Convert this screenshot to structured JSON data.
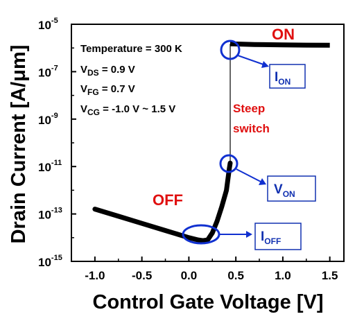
{
  "chart_data": {
    "type": "line",
    "xlabel": "Control Gate Voltage [V]",
    "ylabel": "Drain Current [A/μm]",
    "xlim": [
      -1.25,
      1.65
    ],
    "ylim_log10": [
      -15,
      -5
    ],
    "y_scale": "log",
    "x_ticks": [
      {
        "v": -1.0,
        "label": "-1.0"
      },
      {
        "v": -0.5,
        "label": "-0.5"
      },
      {
        "v": 0.0,
        "label": "0.0"
      },
      {
        "v": 0.5,
        "label": "0.5"
      },
      {
        "v": 1.0,
        "label": "1.0"
      },
      {
        "v": 1.5,
        "label": "1.5"
      }
    ],
    "y_ticks": [
      {
        "exp": -5,
        "base": "10",
        "sup": "-5"
      },
      {
        "exp": -7,
        "base": "10",
        "sup": "-7"
      },
      {
        "exp": -9,
        "base": "10",
        "sup": "-9"
      },
      {
        "exp": -11,
        "base": "10",
        "sup": "-11"
      },
      {
        "exp": -13,
        "base": "10",
        "sup": "-13"
      },
      {
        "exp": -15,
        "base": "10",
        "sup": "-15"
      }
    ],
    "series": [
      {
        "color": "#000000",
        "points": [
          [
            -1.0,
            1.6e-13
          ],
          [
            -0.75,
            8e-14
          ],
          [
            -0.5,
            4e-14
          ],
          [
            -0.25,
            2e-14
          ],
          [
            0.0,
            1e-14
          ],
          [
            0.1,
            8e-15
          ],
          [
            0.15,
            7.5e-15
          ],
          [
            0.2,
            8e-15
          ],
          [
            0.25,
            1.6e-14
          ],
          [
            0.3,
            5e-14
          ],
          [
            0.35,
            2e-13
          ],
          [
            0.4,
            1e-12
          ],
          [
            0.43,
            8e-12
          ],
          [
            0.44,
            1.4e-11
          ],
          [
            0.44,
            1.5e-06
          ],
          [
            0.46,
            1.5e-06
          ],
          [
            0.7,
            1.4e-06
          ],
          [
            1.0,
            1.35e-06
          ],
          [
            1.25,
            1.32e-06
          ],
          [
            1.5,
            1.3e-06
          ]
        ]
      }
    ],
    "conditions": {
      "temperature": "Temperature = 300 K",
      "vds": {
        "main": "V",
        "sub": "DS",
        "rest": " = 0.9 V"
      },
      "vfg": {
        "main": "V",
        "sub": "FG",
        "rest": " = 0.7 V"
      },
      "vcg": {
        "main": "V",
        "sub": "CG",
        "rest": " = -1.0 V ~ 1.5 V"
      }
    },
    "annotations": {
      "on": "ON",
      "off": "OFF",
      "steep_line1": "Steep",
      "steep_line2": "switch",
      "ion": {
        "main": "I",
        "sub": "ON"
      },
      "von": {
        "main": "V",
        "sub": "ON"
      },
      "ioff": {
        "main": "I",
        "sub": "OFF"
      }
    },
    "colors": {
      "curve": "#000000",
      "on_off_text": "#e01010",
      "marker": "#1030d0"
    }
  }
}
